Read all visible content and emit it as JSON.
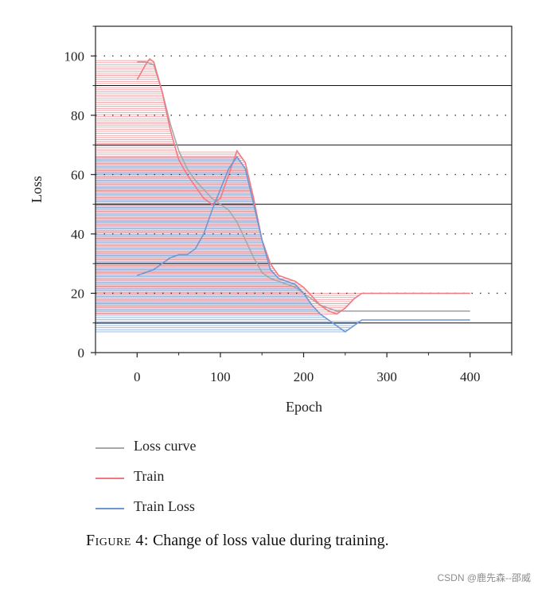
{
  "chart_data": {
    "type": "line",
    "title": "",
    "xlabel": "Epoch",
    "ylabel": "Loss",
    "xlim": [
      -50,
      450
    ],
    "ylim": [
      0,
      110
    ],
    "xticks": [
      0,
      100,
      200,
      300,
      400
    ],
    "yticks": [
      0,
      20,
      40,
      60,
      80,
      100
    ],
    "reference_solid_lines": [
      10,
      30,
      50,
      70,
      90
    ],
    "reference_dotted_lines": [
      20,
      40,
      60,
      80,
      100
    ],
    "series": [
      {
        "name": "Loss curve",
        "color": "#a8a8a8",
        "x": [
          0,
          10,
          20,
          30,
          40,
          50,
          60,
          70,
          80,
          90,
          100,
          110,
          120,
          130,
          140,
          150,
          160,
          170,
          180,
          190,
          200,
          210,
          220,
          230,
          240,
          250,
          260,
          300,
          350,
          400
        ],
        "y": [
          98,
          98,
          97,
          88,
          77,
          68,
          62,
          58,
          55,
          52,
          50,
          48,
          44,
          38,
          32,
          27,
          25,
          24,
          23,
          22,
          20,
          18,
          16,
          15,
          14,
          14,
          14,
          14,
          14,
          14
        ]
      },
      {
        "name": "Train",
        "color": "#f07a82",
        "x": [
          0,
          10,
          15,
          20,
          30,
          40,
          50,
          60,
          70,
          80,
          90,
          100,
          110,
          120,
          130,
          140,
          150,
          160,
          170,
          180,
          190,
          200,
          210,
          220,
          230,
          240,
          250,
          260,
          270,
          300,
          350,
          400
        ],
        "y": [
          92,
          97,
          99,
          98,
          88,
          75,
          65,
          60,
          56,
          52,
          50,
          52,
          60,
          68,
          64,
          52,
          38,
          30,
          26,
          25,
          24,
          22,
          19,
          16,
          14,
          13,
          15,
          18,
          20,
          20,
          20,
          20
        ]
      },
      {
        "name": "Train Loss",
        "color": "#6e98d2",
        "x": [
          0,
          10,
          20,
          30,
          40,
          50,
          60,
          70,
          80,
          90,
          100,
          110,
          120,
          130,
          140,
          150,
          160,
          170,
          180,
          190,
          200,
          210,
          220,
          230,
          240,
          250,
          260,
          270,
          300,
          350,
          400
        ],
        "y": [
          26,
          27,
          28,
          30,
          32,
          33,
          33,
          35,
          40,
          48,
          55,
          62,
          66,
          62,
          50,
          38,
          28,
          25,
          24,
          23,
          20,
          16,
          13,
          11,
          9,
          7,
          9,
          11,
          11,
          11,
          11
        ]
      }
    ],
    "legend": [
      "Loss curve",
      "Train",
      "Train Loss"
    ],
    "legend_position": "below"
  },
  "caption": {
    "figure_label": "Figure 4:",
    "text": "Change of loss value during training."
  },
  "watermark": "CSDN @鹿先森--邵威"
}
